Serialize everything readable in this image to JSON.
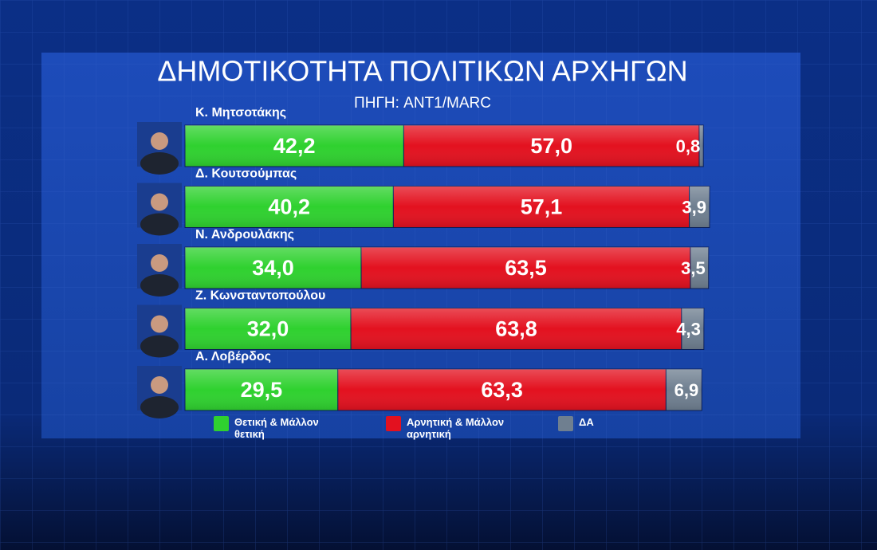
{
  "chart_data": {
    "type": "stacked-bar",
    "orientation": "horizontal",
    "title": "ΔΗΜΟΤΙΚΟΤΗΤΑ ΠΟΛΙΤΙΚΩΝ ΑΡΧΗΓΩΝ",
    "subtitle": "ΠΗΓΗ: ANT1/MARC",
    "categories": [
      "Κ. Μητσοτάκης",
      "Δ. Κουτσούμπας",
      "Ν. Ανδρουλάκης",
      "Ζ. Κωνσταντοπούλου",
      "Α. Λοβέρδος"
    ],
    "series": [
      {
        "name": "Θετική & Μάλλον θετική",
        "color": "#2fd12f",
        "values": [
          42.2,
          40.2,
          34.0,
          32.0,
          29.5
        ],
        "value_labels": [
          "42,2",
          "40,2",
          "34,0",
          "32,0",
          "29,5"
        ]
      },
      {
        "name": "Αρνητική & Μάλλον αρνητική",
        "color": "#e3111f",
        "values": [
          57.0,
          57.1,
          63.5,
          63.8,
          63.3
        ],
        "value_labels": [
          "57,0",
          "57,1",
          "63,5",
          "63,8",
          "63,3"
        ]
      },
      {
        "name": "ΔΑ",
        "color": "#6f7f90",
        "values": [
          0.8,
          3.9,
          3.5,
          4.3,
          6.9
        ],
        "value_labels": [
          "0,8",
          "3,9",
          "3,5",
          "4,3",
          "6,9"
        ]
      }
    ],
    "legend": "bottom"
  }
}
